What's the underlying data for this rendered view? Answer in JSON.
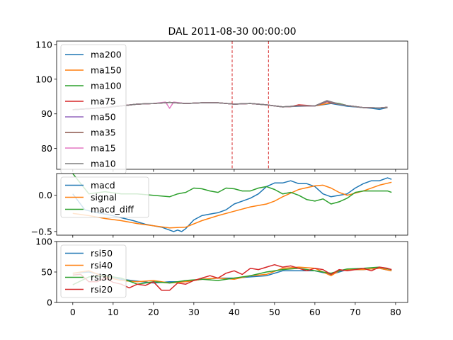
{
  "title": "DAL 2011-08-30 00:00:00",
  "chart_data": [
    {
      "type": "line",
      "title": "DAL 2011-08-30 00:00:00",
      "xlim": [
        -4,
        83
      ],
      "ylim": [
        74,
        111
      ],
      "x_ticks": [
        0,
        10,
        20,
        30,
        40,
        50,
        60,
        70,
        80
      ],
      "y_ticks": [
        80,
        90,
        100,
        110
      ],
      "legend_position": "upper-left",
      "vlines": [
        39.5,
        48.5
      ],
      "vline_color": "#d62728",
      "series": [
        {
          "name": "ma200",
          "color": "#1f77b4",
          "x": [
            0,
            4,
            8,
            12,
            16,
            20,
            24,
            28,
            32,
            36,
            40,
            44,
            48,
            52,
            56,
            60,
            64,
            68,
            72,
            74,
            76,
            78
          ],
          "values": [
            91.2,
            91.5,
            91.8,
            92.3,
            92.8,
            93.0,
            93.3,
            93.0,
            93.2,
            93.2,
            92.8,
            93.0,
            92.6,
            92.0,
            92.2,
            92.3,
            93.0,
            92.2,
            91.8,
            91.6,
            91.3,
            91.8
          ]
        },
        {
          "name": "ma150",
          "color": "#ff7f0e",
          "x": [
            0,
            4,
            8,
            12,
            16,
            20,
            24,
            28,
            32,
            36,
            40,
            44,
            48,
            52,
            56,
            60,
            64,
            68,
            72,
            76,
            78
          ],
          "values": [
            91.2,
            91.5,
            91.8,
            92.3,
            92.8,
            93.0,
            93.3,
            93.0,
            93.2,
            93.2,
            92.8,
            93.0,
            92.6,
            92.0,
            92.3,
            92.3,
            93.2,
            92.4,
            91.8,
            91.7,
            91.8
          ]
        },
        {
          "name": "ma100",
          "color": "#2ca02c",
          "x": [
            0,
            4,
            8,
            12,
            16,
            20,
            24,
            28,
            32,
            36,
            40,
            44,
            48,
            52,
            56,
            60,
            63,
            66,
            68,
            72,
            76,
            78
          ],
          "values": [
            91.2,
            91.5,
            91.8,
            92.3,
            92.8,
            93.0,
            93.3,
            93.0,
            93.2,
            93.2,
            92.8,
            93.0,
            92.6,
            92.0,
            92.3,
            92.3,
            93.5,
            93.0,
            92.4,
            91.8,
            91.7,
            91.9
          ]
        },
        {
          "name": "ma75",
          "color": "#d62728",
          "x": [
            0,
            4,
            8,
            12,
            16,
            20,
            24,
            28,
            32,
            36,
            40,
            44,
            48,
            52,
            54,
            56,
            60,
            63,
            66,
            68,
            72,
            76,
            78
          ],
          "values": [
            91.2,
            91.5,
            91.8,
            92.3,
            92.8,
            93.0,
            93.3,
            93.0,
            93.2,
            93.2,
            92.8,
            93.0,
            92.6,
            92.0,
            92.1,
            92.6,
            92.3,
            93.5,
            92.8,
            92.4,
            91.8,
            91.7,
            91.9
          ]
        },
        {
          "name": "ma50",
          "color": "#9467bd",
          "x": [
            0,
            4,
            8,
            12,
            16,
            20,
            24,
            28,
            32,
            36,
            40,
            44,
            48,
            52,
            56,
            60,
            63,
            66,
            68,
            72,
            76,
            78
          ],
          "values": [
            91.2,
            91.5,
            91.8,
            92.3,
            92.8,
            93.0,
            93.3,
            93.0,
            93.2,
            93.2,
            92.8,
            93.0,
            92.6,
            92.0,
            92.3,
            92.3,
            93.6,
            92.8,
            92.4,
            91.8,
            91.7,
            91.9
          ]
        },
        {
          "name": "ma35",
          "color": "#8c564b",
          "x": [
            0,
            4,
            8,
            12,
            16,
            20,
            24,
            28,
            32,
            36,
            40,
            44,
            48,
            52,
            56,
            60,
            63,
            66,
            68,
            72,
            76,
            78
          ],
          "values": [
            91.2,
            91.5,
            91.8,
            92.3,
            92.8,
            93.0,
            93.3,
            93.0,
            93.2,
            93.2,
            92.8,
            93.0,
            92.6,
            92.0,
            92.3,
            92.3,
            93.7,
            92.8,
            92.4,
            91.8,
            91.7,
            91.9
          ]
        },
        {
          "name": "ma15",
          "color": "#e377c2",
          "x": [
            0,
            4,
            8,
            12,
            16,
            20,
            23,
            24,
            25,
            28,
            32,
            36,
            40,
            44,
            48,
            52,
            56,
            60,
            63,
            66,
            68,
            72,
            76,
            78
          ],
          "values": [
            91.2,
            91.5,
            91.8,
            92.3,
            92.8,
            93.0,
            93.4,
            91.6,
            93.4,
            93.0,
            93.2,
            93.2,
            92.8,
            93.0,
            92.6,
            92.0,
            92.3,
            92.3,
            93.8,
            92.8,
            92.4,
            91.8,
            91.7,
            91.9
          ]
        },
        {
          "name": "ma10",
          "color": "#7f7f7f",
          "x": [
            0,
            4,
            8,
            12,
            16,
            20,
            24,
            28,
            32,
            36,
            40,
            44,
            48,
            52,
            56,
            60,
            63,
            66,
            68,
            72,
            76,
            78
          ],
          "values": [
            91.2,
            91.5,
            91.8,
            92.3,
            92.8,
            93.0,
            93.3,
            93.0,
            93.2,
            93.2,
            92.8,
            93.0,
            92.6,
            92.0,
            92.3,
            92.3,
            93.8,
            92.8,
            92.4,
            91.8,
            91.7,
            91.9
          ]
        }
      ]
    },
    {
      "type": "line",
      "xlim": [
        -4,
        83
      ],
      "ylim": [
        -0.55,
        0.3
      ],
      "y_ticks": [
        -0.5,
        0.0
      ],
      "y_tick_labels": [
        "−0.5",
        "0.0"
      ],
      "legend_position": "upper-left",
      "series": [
        {
          "name": "macd",
          "color": "#1f77b4",
          "x": [
            0,
            3,
            6,
            9,
            12,
            15,
            18,
            20,
            22,
            24,
            25,
            26,
            27,
            28,
            30,
            32,
            34,
            36,
            38,
            40,
            42,
            44,
            46,
            48,
            50,
            52,
            54,
            56,
            58,
            60,
            62,
            64,
            66,
            68,
            70,
            72,
            74,
            76,
            78,
            79
          ],
          "values": [
            0.02,
            -0.2,
            -0.24,
            -0.27,
            -0.31,
            -0.35,
            -0.4,
            -0.42,
            -0.44,
            -0.48,
            -0.5,
            -0.48,
            -0.5,
            -0.46,
            -0.34,
            -0.28,
            -0.26,
            -0.24,
            -0.2,
            -0.12,
            -0.08,
            -0.04,
            0.02,
            0.12,
            0.17,
            0.17,
            0.2,
            0.16,
            0.16,
            0.12,
            0.02,
            -0.02,
            0.0,
            0.02,
            0.1,
            0.16,
            0.2,
            0.2,
            0.24,
            0.22
          ]
        },
        {
          "name": "signal",
          "color": "#ff7f0e",
          "x": [
            0,
            4,
            8,
            12,
            16,
            20,
            24,
            28,
            32,
            36,
            40,
            44,
            48,
            50,
            52,
            56,
            60,
            62,
            64,
            66,
            68,
            72,
            76,
            79
          ],
          "values": [
            -0.25,
            -0.28,
            -0.32,
            -0.35,
            -0.39,
            -0.42,
            -0.45,
            -0.44,
            -0.35,
            -0.28,
            -0.22,
            -0.16,
            -0.12,
            -0.08,
            -0.02,
            0.08,
            0.13,
            0.14,
            0.1,
            0.04,
            0.0,
            0.06,
            0.14,
            0.18
          ]
        },
        {
          "name": "macd_diff",
          "color": "#2ca02c",
          "x": [
            0,
            4,
            8,
            12,
            16,
            20,
            24,
            26,
            28,
            30,
            32,
            34,
            36,
            38,
            40,
            42,
            44,
            46,
            48,
            50,
            52,
            54,
            56,
            58,
            60,
            62,
            64,
            66,
            68,
            70,
            72,
            74,
            76,
            78,
            79
          ],
          "values": [
            0.3,
            0.02,
            0.05,
            0.02,
            0.02,
            0.0,
            -0.02,
            0.02,
            0.04,
            0.1,
            0.09,
            0.06,
            0.04,
            0.1,
            0.09,
            0.06,
            0.06,
            0.1,
            0.12,
            0.08,
            0.02,
            0.04,
            0.0,
            -0.06,
            -0.08,
            -0.05,
            -0.12,
            -0.09,
            -0.04,
            0.04,
            0.06,
            0.06,
            0.06,
            0.06,
            0.04
          ]
        }
      ]
    },
    {
      "type": "line",
      "xlim": [
        -4,
        83
      ],
      "ylim": [
        0,
        100
      ],
      "y_ticks": [
        0,
        50,
        100
      ],
      "x_ticks": [
        0,
        10,
        20,
        30,
        40,
        50,
        60,
        70,
        80
      ],
      "legend_position": "upper-left",
      "series": [
        {
          "name": "rsi50",
          "color": "#1f77b4",
          "x": [
            0,
            4,
            8,
            12,
            16,
            20,
            24,
            28,
            32,
            36,
            40,
            44,
            48,
            52,
            56,
            60,
            64,
            66,
            68,
            72,
            76,
            79
          ],
          "values": [
            48,
            50,
            44,
            38,
            35,
            32,
            34,
            34,
            38,
            40,
            40,
            42,
            44,
            52,
            52,
            52,
            46,
            50,
            54,
            54,
            56,
            52
          ]
        },
        {
          "name": "rsi40",
          "color": "#ff7f0e",
          "x": [
            0,
            4,
            8,
            12,
            16,
            20,
            24,
            28,
            32,
            36,
            40,
            44,
            48,
            52,
            56,
            60,
            64,
            66,
            68,
            72,
            76,
            79
          ],
          "values": [
            48,
            52,
            42,
            36,
            34,
            36,
            32,
            34,
            38,
            40,
            38,
            44,
            46,
            56,
            58,
            56,
            44,
            52,
            54,
            54,
            56,
            52
          ]
        },
        {
          "name": "rsi30",
          "color": "#2ca02c",
          "x": [
            0,
            4,
            8,
            12,
            16,
            20,
            24,
            28,
            32,
            36,
            40,
            44,
            48,
            52,
            56,
            60,
            64,
            66,
            68,
            72,
            76,
            79
          ],
          "values": [
            29,
            42,
            44,
            40,
            30,
            34,
            32,
            36,
            38,
            36,
            40,
            44,
            50,
            54,
            56,
            52,
            48,
            52,
            55,
            56,
            58,
            54
          ]
        },
        {
          "name": "rsi20",
          "color": "#d62728",
          "x": [
            0,
            2,
            4,
            6,
            8,
            10,
            12,
            14,
            16,
            18,
            20,
            22,
            24,
            26,
            28,
            30,
            32,
            34,
            36,
            38,
            40,
            42,
            44,
            46,
            48,
            50,
            52,
            54,
            56,
            58,
            60,
            62,
            64,
            66,
            68,
            70,
            72,
            74,
            76,
            78,
            79
          ],
          "values": [
            45,
            46,
            34,
            34,
            40,
            33,
            30,
            24,
            30,
            28,
            34,
            20,
            20,
            32,
            30,
            36,
            40,
            44,
            40,
            48,
            52,
            46,
            56,
            54,
            58,
            62,
            58,
            60,
            56,
            52,
            56,
            54,
            46,
            54,
            52,
            54,
            56,
            52,
            58,
            56,
            54
          ]
        }
      ]
    }
  ]
}
